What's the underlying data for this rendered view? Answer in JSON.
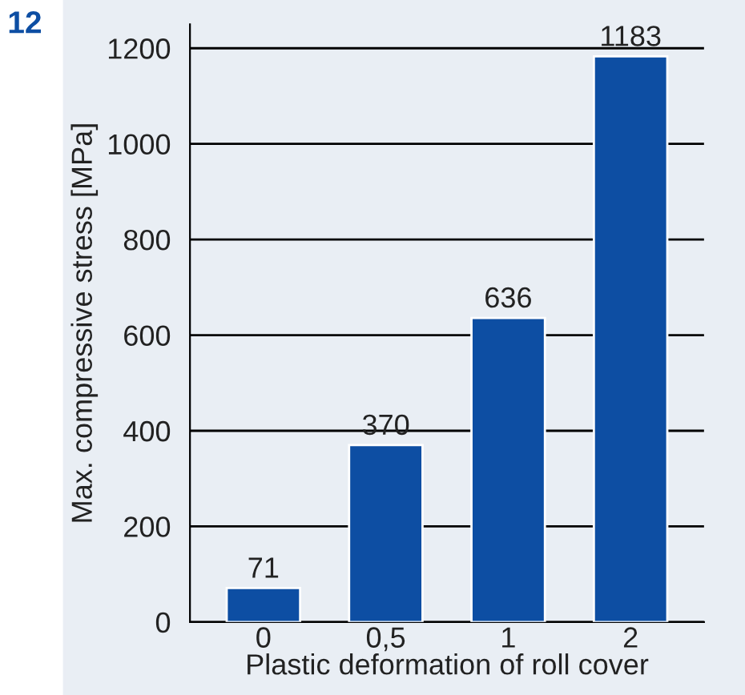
{
  "chart_data": {
    "type": "bar",
    "xlabel": "Plastic deformation of roll cover",
    "ylabel": "Max. compressive stress [MPa]",
    "categories": [
      "0",
      "0,5",
      "1",
      "2"
    ],
    "values": [
      71,
      370,
      636,
      1183
    ],
    "color": "#0d4ea3",
    "ylim": [
      0,
      1250
    ],
    "yticks": [
      0,
      200,
      400,
      600,
      800,
      1000,
      1200
    ],
    "grid": "y",
    "data_labels": true,
    "legend": false,
    "annotations": [
      "12"
    ]
  }
}
